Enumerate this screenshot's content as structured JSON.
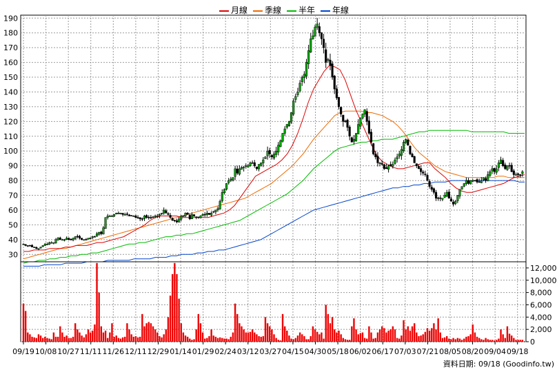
{
  "legend": [
    {
      "label": "月線",
      "color": "#dd0000"
    },
    {
      "label": "季線",
      "color": "#ee6a00"
    },
    {
      "label": "半年",
      "color": "#00bb00"
    },
    {
      "label": "年線",
      "color": "#0044cc"
    }
  ],
  "credit": "資料日期: 09/18 (Goodinfo.tw)",
  "chart_data": [
    {
      "type": "candlestick",
      "title": "",
      "x_ticks": [
        "09/19",
        "10/08",
        "10/27",
        "11/11",
        "11/26",
        "12/11",
        "12/29",
        "01/14",
        "01/29",
        "02/24",
        "03/12",
        "03/27",
        "04/15",
        "04/30",
        "05/18",
        "06/02",
        "06/17",
        "07/03",
        "07/21",
        "08/05",
        "08/20",
        "09/04",
        "09/18"
      ],
      "y_ticks": [
        30,
        40,
        50,
        60,
        70,
        80,
        90,
        100,
        110,
        120,
        130,
        140,
        150,
        160,
        170,
        180,
        190
      ],
      "ylim": [
        25,
        192
      ],
      "grid": true,
      "up_color": "#00aa00",
      "down_color": "#000000",
      "close_series": [
        37,
        36,
        36,
        36,
        35,
        35,
        34,
        34,
        35,
        36,
        37,
        37,
        38,
        38,
        38,
        40,
        41,
        40,
        40,
        40,
        41,
        40,
        40,
        41,
        42,
        42,
        41,
        40,
        40,
        40,
        41,
        41,
        42,
        42,
        44,
        45,
        44,
        48,
        55,
        56,
        56,
        56,
        57,
        58,
        58,
        58,
        57,
        57,
        57,
        56,
        56,
        56,
        55,
        55,
        54,
        54,
        56,
        55,
        55,
        55,
        55,
        56,
        56,
        57,
        58,
        60,
        58,
        57,
        55,
        53,
        53,
        52,
        54,
        56,
        56,
        58,
        57,
        54,
        57,
        56,
        55,
        55,
        56,
        57,
        57,
        58,
        57,
        58,
        59,
        60,
        61,
        66,
        72,
        74,
        78,
        80,
        81,
        82,
        88,
        85,
        88,
        89,
        89,
        90,
        90,
        92,
        92,
        90,
        88,
        91,
        92,
        94,
        96,
        100,
        98,
        96,
        98,
        100,
        104,
        107,
        112,
        115,
        118,
        120,
        126,
        134,
        137,
        140,
        146,
        150,
        152,
        160,
        168,
        176,
        178,
        184,
        186,
        180,
        176,
        170,
        160,
        162,
        158,
        150,
        142,
        136,
        130,
        125,
        120,
        120,
        116,
        110,
        106,
        108,
        112,
        118,
        122,
        125,
        128,
        120,
        112,
        106,
        98,
        96,
        92,
        92,
        91,
        88,
        88,
        90,
        90,
        91,
        94,
        96,
        98,
        101,
        106,
        108,
        104,
        98,
        96,
        92,
        90,
        88,
        86,
        85,
        84,
        80,
        76,
        74,
        72,
        68,
        68,
        68,
        68,
        70,
        72,
        68,
        66,
        64,
        66,
        70,
        74,
        76,
        78,
        80,
        78,
        80,
        80,
        80,
        79,
        79,
        80,
        82,
        80,
        84,
        86,
        88,
        86,
        88,
        92,
        94,
        90,
        88,
        90,
        90,
        86,
        84,
        84,
        84,
        84,
        86
      ],
      "volume_series": [
        6200,
        5000,
        1500,
        1200,
        800,
        700,
        600,
        1200,
        1000,
        600,
        800,
        600,
        500,
        400,
        1500,
        800,
        800,
        2500,
        1500,
        800,
        1000,
        600,
        600,
        800,
        3000,
        2000,
        1500,
        1000,
        700,
        1200,
        2000,
        1500,
        1800,
        2800,
        12800,
        8000,
        2500,
        1500,
        1800,
        600,
        1500,
        3000,
        800,
        1000,
        600,
        500,
        700,
        800,
        3000,
        2000,
        1200,
        800,
        900,
        700,
        800,
        4500,
        2500,
        3000,
        3200,
        3000,
        2500,
        2000,
        1500,
        900,
        700,
        1200,
        2000,
        4000,
        7500,
        11000,
        12800,
        11000,
        7000,
        3000,
        1500,
        1000,
        800,
        500,
        300,
        400,
        2000,
        4500,
        3000,
        1500,
        500,
        600,
        900,
        2000,
        1000,
        800,
        600,
        700,
        600,
        500,
        500,
        400,
        800,
        1500,
        6200,
        4500,
        3000,
        2500,
        2000,
        1500,
        1500,
        1600,
        2000,
        1500,
        1200,
        900,
        800,
        900,
        4000,
        3000,
        2500,
        2000,
        1200,
        600,
        300,
        200,
        4500,
        2500,
        1800,
        1000,
        500,
        400,
        600,
        1000,
        1500,
        1200,
        900,
        400,
        400,
        900,
        2500,
        2000,
        1600,
        1200,
        1500,
        500,
        6000,
        4500,
        3000,
        4000,
        2000,
        1500,
        1800,
        1200,
        600,
        400,
        300,
        300,
        2500,
        3800,
        2000,
        1200,
        1400,
        1500,
        600,
        500,
        2500,
        1500,
        500,
        600,
        1500,
        2000,
        2500,
        2200,
        1500,
        1800,
        2000,
        2500,
        2000,
        600,
        500,
        1000,
        3500,
        2000,
        2500,
        1800,
        2500,
        3000,
        1500,
        900,
        1000,
        1200,
        1600,
        2200,
        1800,
        2200,
        3000,
        2000,
        3800,
        1500,
        600,
        700,
        900,
        500,
        400,
        600,
        400,
        600,
        500,
        300,
        500,
        800,
        900,
        1200,
        2800,
        1500,
        800,
        600,
        400,
        300,
        600,
        400,
        300,
        300,
        200,
        300,
        500,
        2000,
        1200,
        600,
        2500,
        1300,
        1000,
        600,
        300,
        300,
        300,
        300
      ],
      "ma_month_series": [
        32,
        32,
        33,
        33,
        33,
        34,
        34,
        34,
        35,
        35,
        36,
        36,
        36,
        37,
        38,
        38,
        39,
        40,
        41,
        42,
        44,
        46,
        48,
        50,
        53,
        55,
        56,
        56,
        56,
        56,
        55,
        55,
        55,
        55,
        55,
        55,
        56,
        57,
        58,
        60,
        63,
        68,
        73,
        78,
        83,
        85,
        87,
        89,
        91,
        94,
        98,
        104,
        112,
        122,
        133,
        142,
        148,
        154,
        158,
        157,
        155,
        148,
        138,
        128,
        120,
        112,
        104,
        97,
        93,
        91,
        89,
        88,
        88,
        89,
        90,
        91,
        92,
        92,
        88,
        85,
        82,
        78,
        75,
        73,
        72,
        72,
        73,
        74,
        75,
        76,
        77,
        78,
        80,
        82,
        83,
        84
      ],
      "ma_quarter_series": [
        27,
        28,
        29,
        30,
        31,
        32,
        33,
        34,
        34,
        35,
        36,
        37,
        38,
        39,
        40,
        41,
        42,
        43,
        44,
        45,
        46,
        47,
        48,
        49,
        50,
        51,
        52,
        53,
        54,
        55,
        56,
        57,
        58,
        59,
        60,
        61,
        62,
        63,
        64,
        65,
        66,
        67,
        68,
        70,
        72,
        74,
        76,
        78,
        81,
        84,
        87,
        90,
        94,
        98,
        103,
        108,
        112,
        116,
        120,
        124,
        126,
        127,
        127,
        127,
        127,
        126,
        126,
        125,
        124,
        122,
        120,
        117,
        113,
        108,
        103,
        99,
        96,
        93,
        90,
        88,
        86,
        85,
        84,
        83,
        82,
        82,
        82,
        82,
        82,
        82,
        83,
        83,
        82,
        82,
        82,
        82
      ],
      "ma_half_series": [
        24,
        25,
        25,
        26,
        26,
        27,
        27,
        28,
        28,
        29,
        29,
        30,
        30,
        31,
        31,
        32,
        33,
        34,
        35,
        36,
        37,
        37,
        38,
        38,
        39,
        40,
        41,
        42,
        42,
        43,
        43,
        44,
        44,
        45,
        46,
        47,
        48,
        49,
        50,
        51,
        52,
        53,
        55,
        57,
        59,
        61,
        63,
        65,
        67,
        69,
        71,
        74,
        77,
        80,
        84,
        88,
        91,
        94,
        97,
        100,
        102,
        103,
        104,
        105,
        106,
        106,
        107,
        107,
        108,
        108,
        108,
        109,
        110,
        111,
        112,
        113,
        113,
        114,
        114,
        114,
        114,
        114,
        114,
        114,
        114,
        113,
        113,
        113,
        113,
        113,
        113,
        113,
        112,
        112,
        112,
        112
      ],
      "ma_year_series": [
        22,
        22,
        22,
        22,
        23,
        23,
        23,
        23,
        24,
        24,
        24,
        24,
        25,
        25,
        25,
        25,
        26,
        26,
        26,
        26,
        26,
        27,
        27,
        27,
        27,
        28,
        28,
        28,
        29,
        29,
        30,
        30,
        30,
        31,
        31,
        32,
        32,
        33,
        33,
        34,
        35,
        36,
        37,
        38,
        39,
        40,
        42,
        44,
        46,
        48,
        50,
        52,
        54,
        56,
        58,
        60,
        61,
        62,
        63,
        64,
        65,
        66,
        67,
        68,
        69,
        70,
        71,
        72,
        73,
        74,
        75,
        75,
        76,
        76,
        77,
        77,
        78,
        78,
        79,
        79,
        79,
        80,
        80,
        80,
        80,
        80,
        80,
        80,
        80,
        80,
        80,
        80,
        80,
        80,
        79,
        79
      ]
    },
    {
      "type": "bar",
      "title": "",
      "y_ticks": [
        0,
        2000,
        4000,
        6000,
        8000,
        10000,
        12000
      ],
      "y_tick_labels": [
        "0",
        "2,000",
        "4,000",
        "6,000",
        "8,000",
        "10,000",
        "12,000"
      ],
      "ylim": [
        0,
        13000
      ],
      "color": "#ee0000"
    }
  ]
}
